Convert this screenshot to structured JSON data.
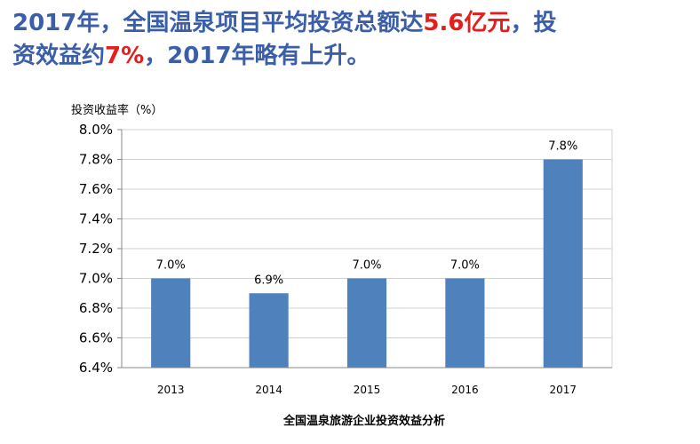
{
  "slide": {
    "headline": {
      "line1_a": "2017年，全国温泉项目平均投资总额达",
      "line1_highlight": "5.6亿元",
      "line1_b": "，投",
      "line2_a": "资效益约",
      "line2_highlight": "7%",
      "line2_b": "，2017年略有上升。"
    },
    "colors": {
      "headline": "#3a5ea8",
      "highlight": "#e41d1d",
      "bar": "#4f81bd",
      "grid": "#d0d0d0"
    }
  },
  "chart_data": {
    "type": "bar",
    "title": "",
    "ylabel": "投资收益率（%）",
    "caption": "全国温泉旅游企业投资效益分析",
    "categories": [
      "2013",
      "2014",
      "2015",
      "2016",
      "2017"
    ],
    "values": [
      7.0,
      6.9,
      7.0,
      7.0,
      7.8
    ],
    "data_labels": [
      "7.0%",
      "6.9%",
      "7.0%",
      "7.0%",
      "7.8%"
    ],
    "ylim": [
      6.4,
      8.0
    ],
    "yticks": [
      6.4,
      6.6,
      6.8,
      7.0,
      7.2,
      7.4,
      7.6,
      7.8,
      8.0
    ],
    "ytick_labels": [
      "6.4%",
      "6.6%",
      "6.8%",
      "7.0%",
      "7.2%",
      "7.4%",
      "7.6%",
      "7.8%",
      "8.0%"
    ],
    "grid": true,
    "legend": "none"
  }
}
